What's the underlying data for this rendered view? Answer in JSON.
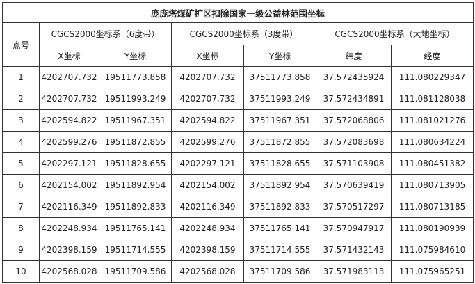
{
  "table": {
    "title": "庞庞塔煤矿扩区扣除国家一级公益林范围坐标",
    "point_header": "点号",
    "groups": [
      "CGCS2000坐标系（6度带）",
      "CGCS2000坐标系（3度带）",
      "CGCS2000坐标系（大地坐标）"
    ],
    "subheaders": [
      "X坐标",
      "Y坐标",
      "X坐标",
      "Y坐标",
      "纬度",
      "经度"
    ],
    "rows": [
      [
        "1",
        "4202707.732",
        "19511773.858",
        "4202707.732",
        "37511773.858",
        "37.572435924",
        "111.080229347"
      ],
      [
        "2",
        "4202707.732",
        "19511993.249",
        "4202707.732",
        "37511993.249",
        "37.572434891",
        "111.081128038"
      ],
      [
        "3",
        "4202594.822",
        "19511967.351",
        "4202594.822",
        "37511967.351",
        "37.572068806",
        "111.081021276"
      ],
      [
        "4",
        "4202599.276",
        "19511872.855",
        "4202599.276",
        "37511872.855",
        "37.572083698",
        "111.080634224"
      ],
      [
        "5",
        "4202297.121",
        "19511828.655",
        "4202297.121",
        "37511828.655",
        "37.571103908",
        "111.080451382"
      ],
      [
        "6",
        "4202154.002",
        "19511892.954",
        "4202154.002",
        "37511892.954",
        "37.570639419",
        "111.080713905"
      ],
      [
        "7",
        "4202116.349",
        "19511892.833",
        "4202116.349",
        "37511892.833",
        "37.570517297",
        "111.080713185"
      ],
      [
        "8",
        "4202248.934",
        "19511765.141",
        "4202248.934",
        "37511765.141",
        "37.570947917",
        "111.080190939"
      ],
      [
        "9",
        "4202398.159",
        "19511714.555",
        "4202398.159",
        "37511714.555",
        "37.571432143",
        "111.075984610"
      ],
      [
        "10",
        "4202568.028",
        "19511709.586",
        "4202568.028",
        "37511709.586",
        "37.571983113",
        "111.075965251"
      ]
    ]
  }
}
